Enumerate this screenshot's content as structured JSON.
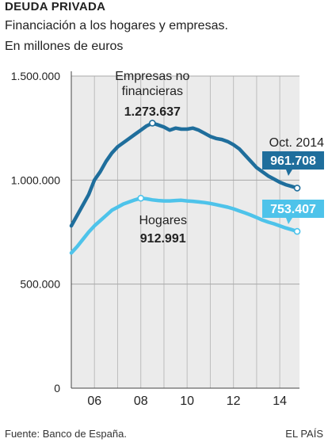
{
  "header": {
    "title": "DEUDA PRIVADA",
    "subtitle_line1": "Financiación a los hogares y empresas.",
    "subtitle_line2": "En millones de euros"
  },
  "footer": {
    "source": "Fuente: Banco de España.",
    "brand": "EL PAÍS"
  },
  "colors": {
    "empresas": "#1f6e9c",
    "hogares": "#4ec3ea",
    "plot_bg": "#ebebeb",
    "grid": "#bdbdbd"
  },
  "chart_data": {
    "type": "line",
    "title": "DEUDA PRIVADA",
    "subtitle": "Financiación a los hogares y empresas. En millones de euros",
    "ylim": [
      0,
      1500000
    ],
    "yticks": [
      0,
      500000,
      1000000,
      1500000
    ],
    "ytick_labels": [
      "0",
      "500.000",
      "1.000.000",
      "1.500.000"
    ],
    "xlim": [
      2005.0,
      2014.85
    ],
    "xticks": [
      2006,
      2008,
      2010,
      2012,
      2014
    ],
    "xtick_labels": [
      "06",
      "08",
      "10",
      "12",
      "14"
    ],
    "grid": true,
    "series": [
      {
        "name": "Empresas no financieras",
        "x": [
          2005.0,
          2005.25,
          2005.5,
          2005.75,
          2006.0,
          2006.25,
          2006.5,
          2006.75,
          2007.0,
          2007.25,
          2007.5,
          2007.75,
          2008.0,
          2008.25,
          2008.5,
          2008.75,
          2009.0,
          2009.25,
          2009.5,
          2009.75,
          2010.0,
          2010.25,
          2010.5,
          2010.75,
          2011.0,
          2011.25,
          2011.5,
          2011.75,
          2012.0,
          2012.25,
          2012.5,
          2012.75,
          2013.0,
          2013.25,
          2013.5,
          2013.75,
          2014.0,
          2014.25,
          2014.5,
          2014.75
        ],
        "values": [
          780000,
          830000,
          880000,
          930000,
          1000000,
          1040000,
          1090000,
          1130000,
          1160000,
          1180000,
          1200000,
          1220000,
          1240000,
          1260000,
          1273637,
          1265000,
          1255000,
          1240000,
          1250000,
          1245000,
          1245000,
          1250000,
          1240000,
          1225000,
          1210000,
          1200000,
          1195000,
          1185000,
          1170000,
          1150000,
          1120000,
          1090000,
          1060000,
          1040000,
          1020000,
          1005000,
          990000,
          978000,
          970000,
          961708
        ],
        "highlight": {
          "x": 2008.5,
          "value": 1273637,
          "label_line1": "Empresas no",
          "label_line2": "financieras",
          "value_label": "1.273.637"
        },
        "end_label": "961.708"
      },
      {
        "name": "Hogares",
        "x": [
          2005.0,
          2005.25,
          2005.5,
          2005.75,
          2006.0,
          2006.25,
          2006.5,
          2006.75,
          2007.0,
          2007.25,
          2007.5,
          2007.75,
          2008.0,
          2008.25,
          2008.5,
          2008.75,
          2009.0,
          2009.25,
          2009.5,
          2009.75,
          2010.0,
          2010.25,
          2010.5,
          2010.75,
          2011.0,
          2011.25,
          2011.5,
          2011.75,
          2012.0,
          2012.25,
          2012.5,
          2012.75,
          2013.0,
          2013.25,
          2013.5,
          2013.75,
          2014.0,
          2014.25,
          2014.5,
          2014.75
        ],
        "values": [
          650000,
          680000,
          715000,
          750000,
          780000,
          805000,
          830000,
          855000,
          870000,
          885000,
          895000,
          905000,
          912991,
          910000,
          905000,
          902000,
          900000,
          900000,
          902000,
          903000,
          900000,
          898000,
          895000,
          892000,
          888000,
          882000,
          876000,
          870000,
          862000,
          852000,
          842000,
          832000,
          820000,
          808000,
          798000,
          790000,
          780000,
          770000,
          762000,
          753407
        ],
        "highlight": {
          "x": 2008.0,
          "value": 912991,
          "label_line1": "Hogares",
          "value_label": "912.991"
        },
        "end_label": "753.407"
      }
    ],
    "annotation_date": "Oct. 2014"
  }
}
